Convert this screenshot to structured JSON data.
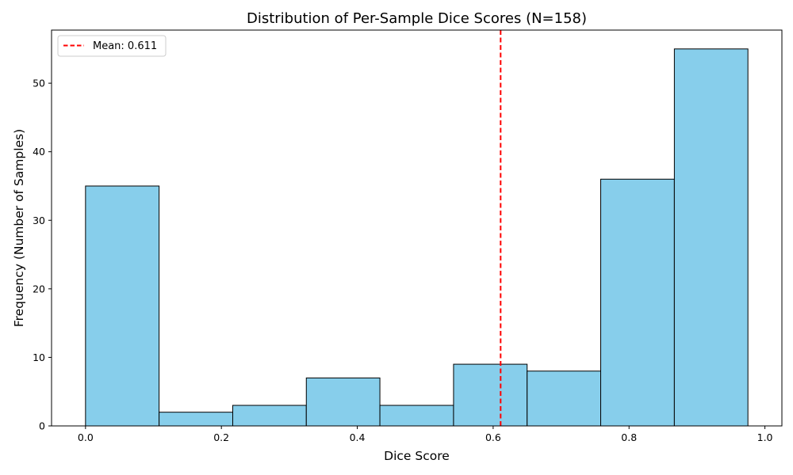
{
  "chart_data": {
    "type": "bar",
    "title": "Distribution of Per-Sample Dice Scores (N=158)",
    "xlabel": "Dice Score",
    "ylabel": "Frequency (Number of Samples)",
    "xlim": [
      -0.05,
      1.025
    ],
    "ylim": [
      0,
      57.75
    ],
    "bins": [
      {
        "start": 0.0,
        "end": 0.1083,
        "count": 35
      },
      {
        "start": 0.1083,
        "end": 0.2167,
        "count": 2
      },
      {
        "start": 0.2167,
        "end": 0.325,
        "count": 3
      },
      {
        "start": 0.325,
        "end": 0.4333,
        "count": 7
      },
      {
        "start": 0.4333,
        "end": 0.5417,
        "count": 3
      },
      {
        "start": 0.5417,
        "end": 0.65,
        "count": 9
      },
      {
        "start": 0.65,
        "end": 0.7583,
        "count": 8
      },
      {
        "start": 0.7583,
        "end": 0.8667,
        "count": 36
      },
      {
        "start": 0.8667,
        "end": 0.975,
        "count": 55
      }
    ],
    "x_ticks": [
      0.0,
      0.2,
      0.4,
      0.6,
      0.8,
      1.0
    ],
    "x_tick_labels": [
      "0.0",
      "0.2",
      "0.4",
      "0.6",
      "0.8",
      "1.0"
    ],
    "y_ticks": [
      0,
      10,
      20,
      30,
      40,
      50
    ],
    "y_tick_labels": [
      "0",
      "10",
      "20",
      "30",
      "40",
      "50"
    ],
    "mean_line": {
      "value": 0.611,
      "label": "Mean: 0.611",
      "color": "#ff0000",
      "style": "dashed"
    },
    "bar_color": "#87ceeb",
    "bar_edge_color": "#000000",
    "grid": false,
    "legend_position": "upper-left"
  }
}
